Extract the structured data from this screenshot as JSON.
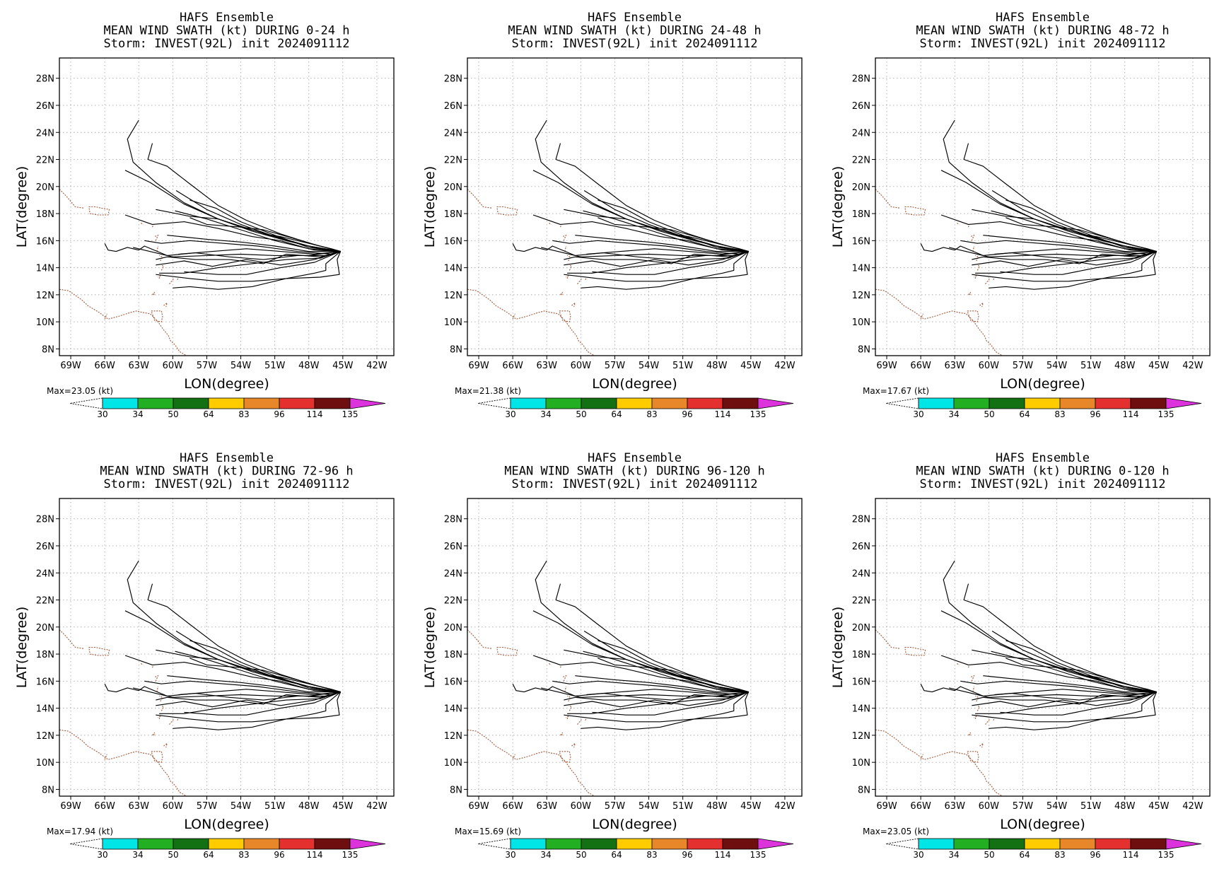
{
  "colors": {
    "track": "#000000",
    "coast": "#a05a3c",
    "grid": "#aaaaaa",
    "colorbar": [
      "#00e5e5",
      "#22b022",
      "#137013",
      "#ffcc00",
      "#e8862a",
      "#e53030",
      "#6e0e0e",
      "#dd33dd"
    ]
  },
  "map": {
    "lon_ticks": [
      "69W",
      "66W",
      "63W",
      "60W",
      "57W",
      "54W",
      "51W",
      "48W",
      "45W",
      "42W"
    ],
    "lat_ticks": [
      "8N",
      "10N",
      "12N",
      "14N",
      "16N",
      "18N",
      "20N",
      "22N",
      "24N",
      "26N",
      "28N"
    ],
    "xlabel": "LON(degree)",
    "ylabel": "LAT(degree)",
    "colorbar_levels": [
      "30",
      "34",
      "50",
      "64",
      "83",
      "96",
      "114",
      "135"
    ]
  },
  "chart_data": [
    {
      "type": "map",
      "title": [
        "HAFS Ensemble",
        "MEAN WIND SWATH (kt) DURING  0-24 h",
        "Storm: INVEST(92L) init 2024091112"
      ],
      "max_label": "Max=23.05 (kt)"
    },
    {
      "type": "map",
      "title": [
        "HAFS Ensemble",
        "MEAN WIND SWATH (kt) DURING 24-48 h",
        "Storm: INVEST(92L) init 2024091112"
      ],
      "max_label": "Max=21.38 (kt)"
    },
    {
      "type": "map",
      "title": [
        "HAFS Ensemble",
        "MEAN WIND SWATH (kt) DURING 48-72 h",
        "Storm: INVEST(92L) init 2024091112"
      ],
      "max_label": "Max=17.67 (kt)"
    },
    {
      "type": "map",
      "title": [
        "HAFS Ensemble",
        "MEAN WIND SWATH (kt) DURING 72-96 h",
        "Storm: INVEST(92L) init 2024091112"
      ],
      "max_label": "Max=17.94 (kt)"
    },
    {
      "type": "map",
      "title": [
        "HAFS Ensemble",
        "MEAN WIND SWATH (kt) DURING 96-120 h",
        "Storm: INVEST(92L) init 2024091112"
      ],
      "max_label": "Max=15.69 (kt)"
    },
    {
      "type": "map",
      "title": [
        "HAFS Ensemble",
        "MEAN WIND SWATH (kt) DURING 0-120 h",
        "Storm: INVEST(92L) init 2024091112"
      ],
      "max_label": "Max=23.05 (kt)"
    }
  ]
}
